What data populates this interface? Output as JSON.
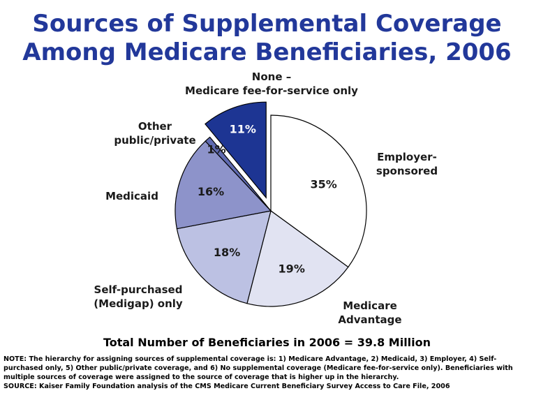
{
  "title": {
    "line1": "Sources of Supplemental Coverage",
    "line2": "Among Medicare Beneficiaries, 2006"
  },
  "chart_data": {
    "type": "pie",
    "unit": "%",
    "slices": [
      {
        "name": "Employer-sponsored",
        "label_lines": [
          "Employer-",
          "sponsored"
        ],
        "value": 35,
        "label": "35%",
        "color": "#ffffff",
        "text_color": "#1a1a1a",
        "exploded": false
      },
      {
        "name": "Medicare Advantage",
        "label_lines": [
          "Medicare",
          "Advantage"
        ],
        "value": 19,
        "label": "19%",
        "color": "#e1e3f2",
        "text_color": "#1a1a1a",
        "exploded": false
      },
      {
        "name": "Self-purchased (Medigap) only",
        "label_lines": [
          "Self-purchased",
          "(Medigap) only"
        ],
        "value": 18,
        "label": "18%",
        "color": "#bcc1e3",
        "text_color": "#1a1a1a",
        "exploded": false
      },
      {
        "name": "Medicaid",
        "label_lines": [
          "Medicaid"
        ],
        "value": 16,
        "label": "16%",
        "color": "#8d93ca",
        "text_color": "#1a1a1a",
        "exploded": false
      },
      {
        "name": "Other public/private",
        "label_lines": [
          "Other",
          "public/private"
        ],
        "value": 1,
        "label": "1%",
        "color": "#5f6ab0",
        "text_color": "#1a1a1a",
        "exploded": false
      },
      {
        "name": "None – Medicare fee-for-service only",
        "label_lines": [
          "None –",
          "Medicare fee-for-service only"
        ],
        "value": 11,
        "label": "11%",
        "color": "#1d3593",
        "text_color": "#ffffff",
        "exploded": true
      }
    ]
  },
  "total": "Total Number of Beneficiaries in 2006 = 39.8 Million",
  "note": "NOTE: The hierarchy for assigning sources of supplemental coverage is: 1) Medicare Advantage, 2) Medicaid, 3) Employer, 4) Self-purchased only, 5) Other public/private coverage, and 6) No supplemental coverage (Medicare fee-for-service only). Beneficiaries with multiple sources of coverage were assigned to the source of coverage that is higher up in the hierarchy.",
  "source": "SOURCE: Kaiser Family Foundation analysis of the CMS Medicare Current Beneficiary Survey Access to Care File, 2006"
}
